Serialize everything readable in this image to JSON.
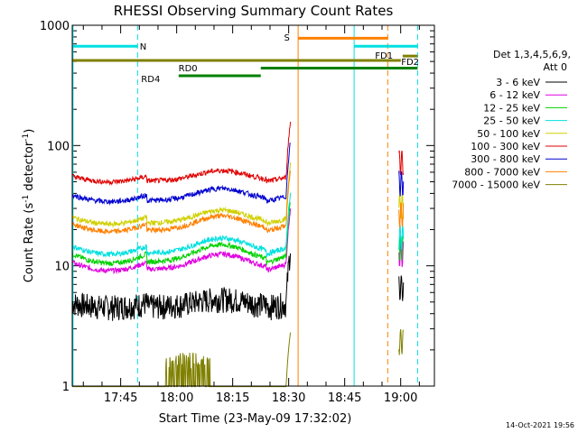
{
  "chart_data": {
    "type": "line",
    "title": "RHESSI Observing Summary Count Rates",
    "xlabel": "Start Time (23-May-09 17:32:02)",
    "ylabel_main": "Count Rate (s",
    "ylabel_sup1": "-1",
    "ylabel_mid": " detector",
    "ylabel_sup2": "-1",
    "ylabel_end": ")",
    "x_unit": "minutes after 17:32:02",
    "xlim": [
      0,
      97
    ],
    "ylim": [
      1,
      1000
    ],
    "yscale": "log",
    "xticks": [
      {
        "t": 12.97,
        "label": "17:45"
      },
      {
        "t": 27.97,
        "label": "18:00"
      },
      {
        "t": 42.97,
        "label": "18:15"
      },
      {
        "t": 57.97,
        "label": "18:30"
      },
      {
        "t": 72.97,
        "label": "18:45"
      },
      {
        "t": 87.97,
        "label": "19:00"
      }
    ],
    "yticks": [
      {
        "v": 1,
        "label": "1"
      },
      {
        "v": 10,
        "label": "10"
      },
      {
        "v": 100,
        "label": "100"
      },
      {
        "v": 1000,
        "label": "1000"
      }
    ],
    "legend_header": [
      "Det 1,3,4,5,6,9,",
      "Att 0"
    ],
    "series": [
      {
        "name": "3 - 6 keV",
        "color": "#000000",
        "base": 4.2,
        "amp": 1.0,
        "kind": "noisy"
      },
      {
        "name": "6 - 12 keV",
        "color": "#e000e0",
        "base": 8.0,
        "amp": 4.5,
        "kind": "smooth"
      },
      {
        "name": "12 - 25 keV",
        "color": "#00d000",
        "base": 9.0,
        "amp": 6.0,
        "kind": "smooth"
      },
      {
        "name": "25 - 50 keV",
        "color": "#00e0e0",
        "base": 11.0,
        "amp": 6.0,
        "kind": "smooth"
      },
      {
        "name": "50 - 100 keV",
        "color": "#d0d000",
        "base": 20.0,
        "amp": 9.0,
        "kind": "smooth"
      },
      {
        "name": "100 - 300 keV",
        "color": "#e00000",
        "base": 46.0,
        "amp": 16.0,
        "kind": "smooth"
      },
      {
        "name": "300 - 800 keV",
        "color": "#0000d0",
        "base": 31.0,
        "amp": 13.0,
        "kind": "smooth"
      },
      {
        "name": "800 - 7000 keV",
        "color": "#ff8000",
        "base": 17.0,
        "amp": 9.0,
        "kind": "smooth"
      },
      {
        "name": "7000 - 15000 keV",
        "color": "#808000",
        "base": 1.5,
        "amp": 0.3,
        "kind": "spiky"
      }
    ],
    "flags": [
      {
        "label": "N",
        "color": "#00e0e0",
        "y": 670,
        "t0": 0,
        "t1": 17.5
      },
      {
        "label": "N",
        "color": "#00e0e0",
        "y": 670,
        "t0": 75.5,
        "t1": 92.5
      },
      {
        "label": "S",
        "color": "#ff8000",
        "y": 780,
        "t0": 60.5,
        "t1": 84.5
      },
      {
        "label": "FD1",
        "color": "#808000",
        "y": 555,
        "t0": 88.5,
        "t1": 92.5
      },
      {
        "label": "FD2",
        "color": "#808000",
        "y": 510,
        "t0": 0,
        "t1": 88
      },
      {
        "label": "RD0",
        "color": "#008000",
        "y": 440,
        "t0": 50.5,
        "t1": 92.5
      },
      {
        "label": "RD4",
        "color": "#008000",
        "y": 380,
        "t0": 28.5,
        "t1": 50.5
      }
    ],
    "flag_labels": [
      {
        "text": "N",
        "color": "#00e0e0",
        "t": 19.0,
        "y": 670
      },
      {
        "text": "S",
        "color": "#ff8000",
        "t": 57.5,
        "y": 800
      },
      {
        "text": "FD1",
        "color": "#808000",
        "t": 83.5,
        "y": 565
      },
      {
        "text": "FD2",
        "color": "#808000",
        "t": 90.5,
        "y": 500
      },
      {
        "text": "RD0",
        "color": "#008000",
        "t": 31.0,
        "y": 445
      },
      {
        "text": "RD4",
        "color": "#008000",
        "t": 21.0,
        "y": 360
      }
    ],
    "vlines": [
      {
        "t": 0.2,
        "color": "#00e0e0",
        "style": "solid"
      },
      {
        "t": 17.5,
        "color": "#00e0e0",
        "style": "dashed"
      },
      {
        "t": 60.5,
        "color": "#ff8000",
        "style": "solid"
      },
      {
        "t": 75.5,
        "color": "#00e0e0",
        "style": "solid"
      },
      {
        "t": 84.5,
        "color": "#ff8000",
        "style": "dashed"
      },
      {
        "t": 92.5,
        "color": "#00e0e0",
        "style": "dashed"
      }
    ],
    "timestamp": "14-Oct-2021 19:56"
  }
}
